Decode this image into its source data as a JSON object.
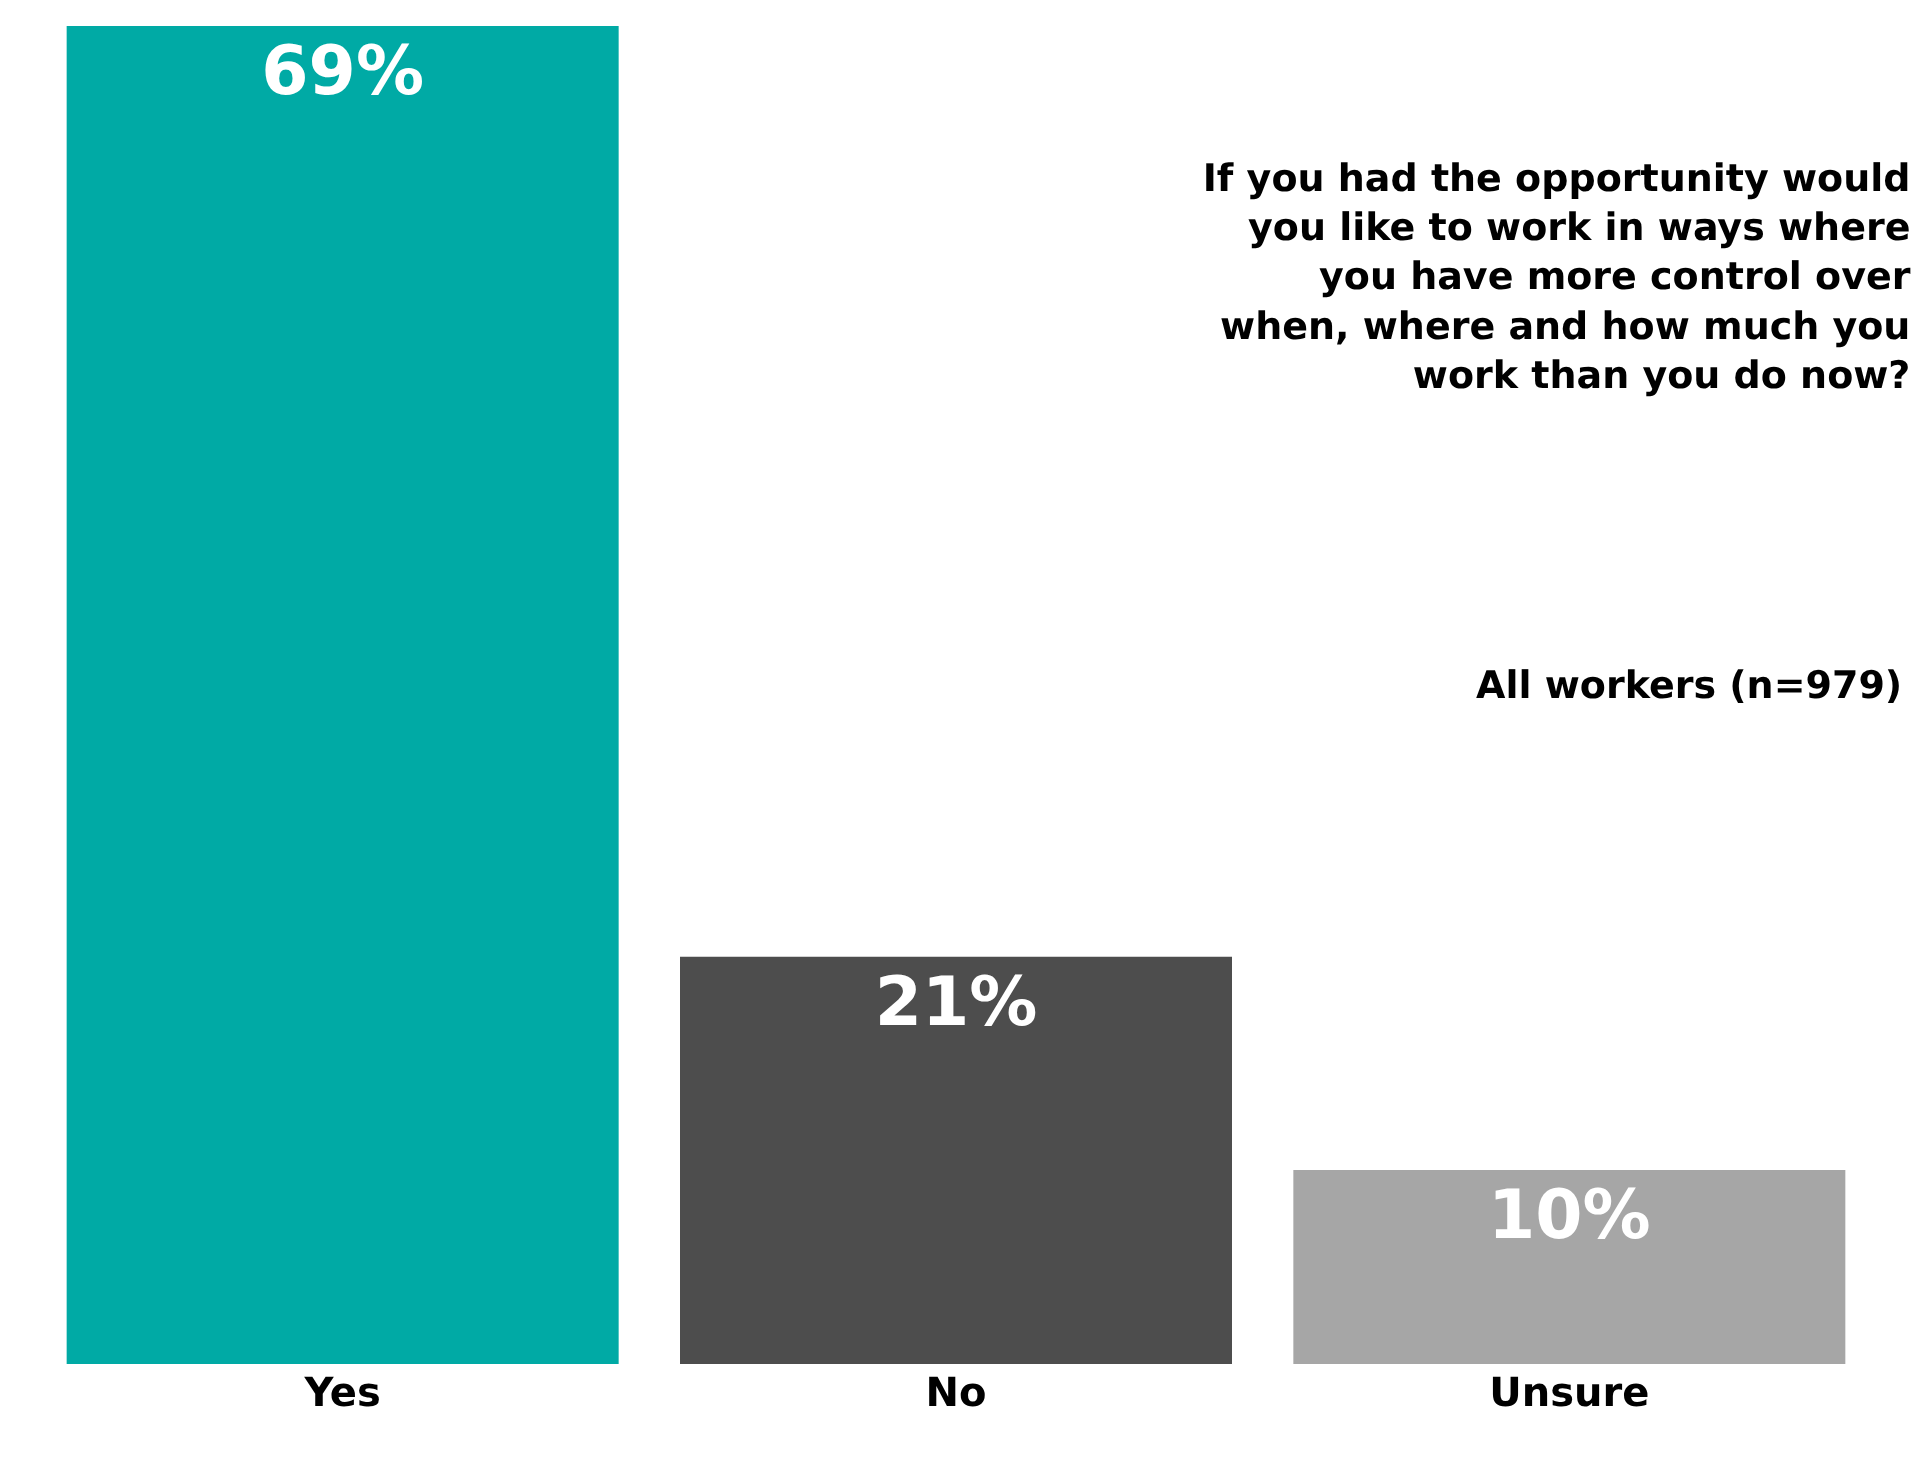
{
  "chart_data": {
    "type": "bar",
    "title": "If you had the opportunity would\nyou like to work in ways where\nyou have more control over\nwhen, where and how much you\nwork than you do now?",
    "subtitle": "All workers (n=979)",
    "categories": [
      "Yes",
      "No",
      "Unsure"
    ],
    "values": [
      69,
      21,
      10
    ],
    "colors": [
      "#00aaa5",
      "#4d4d4d",
      "#a6a6a6"
    ],
    "value_labels": [
      "69%",
      "21%",
      "10%"
    ]
  }
}
